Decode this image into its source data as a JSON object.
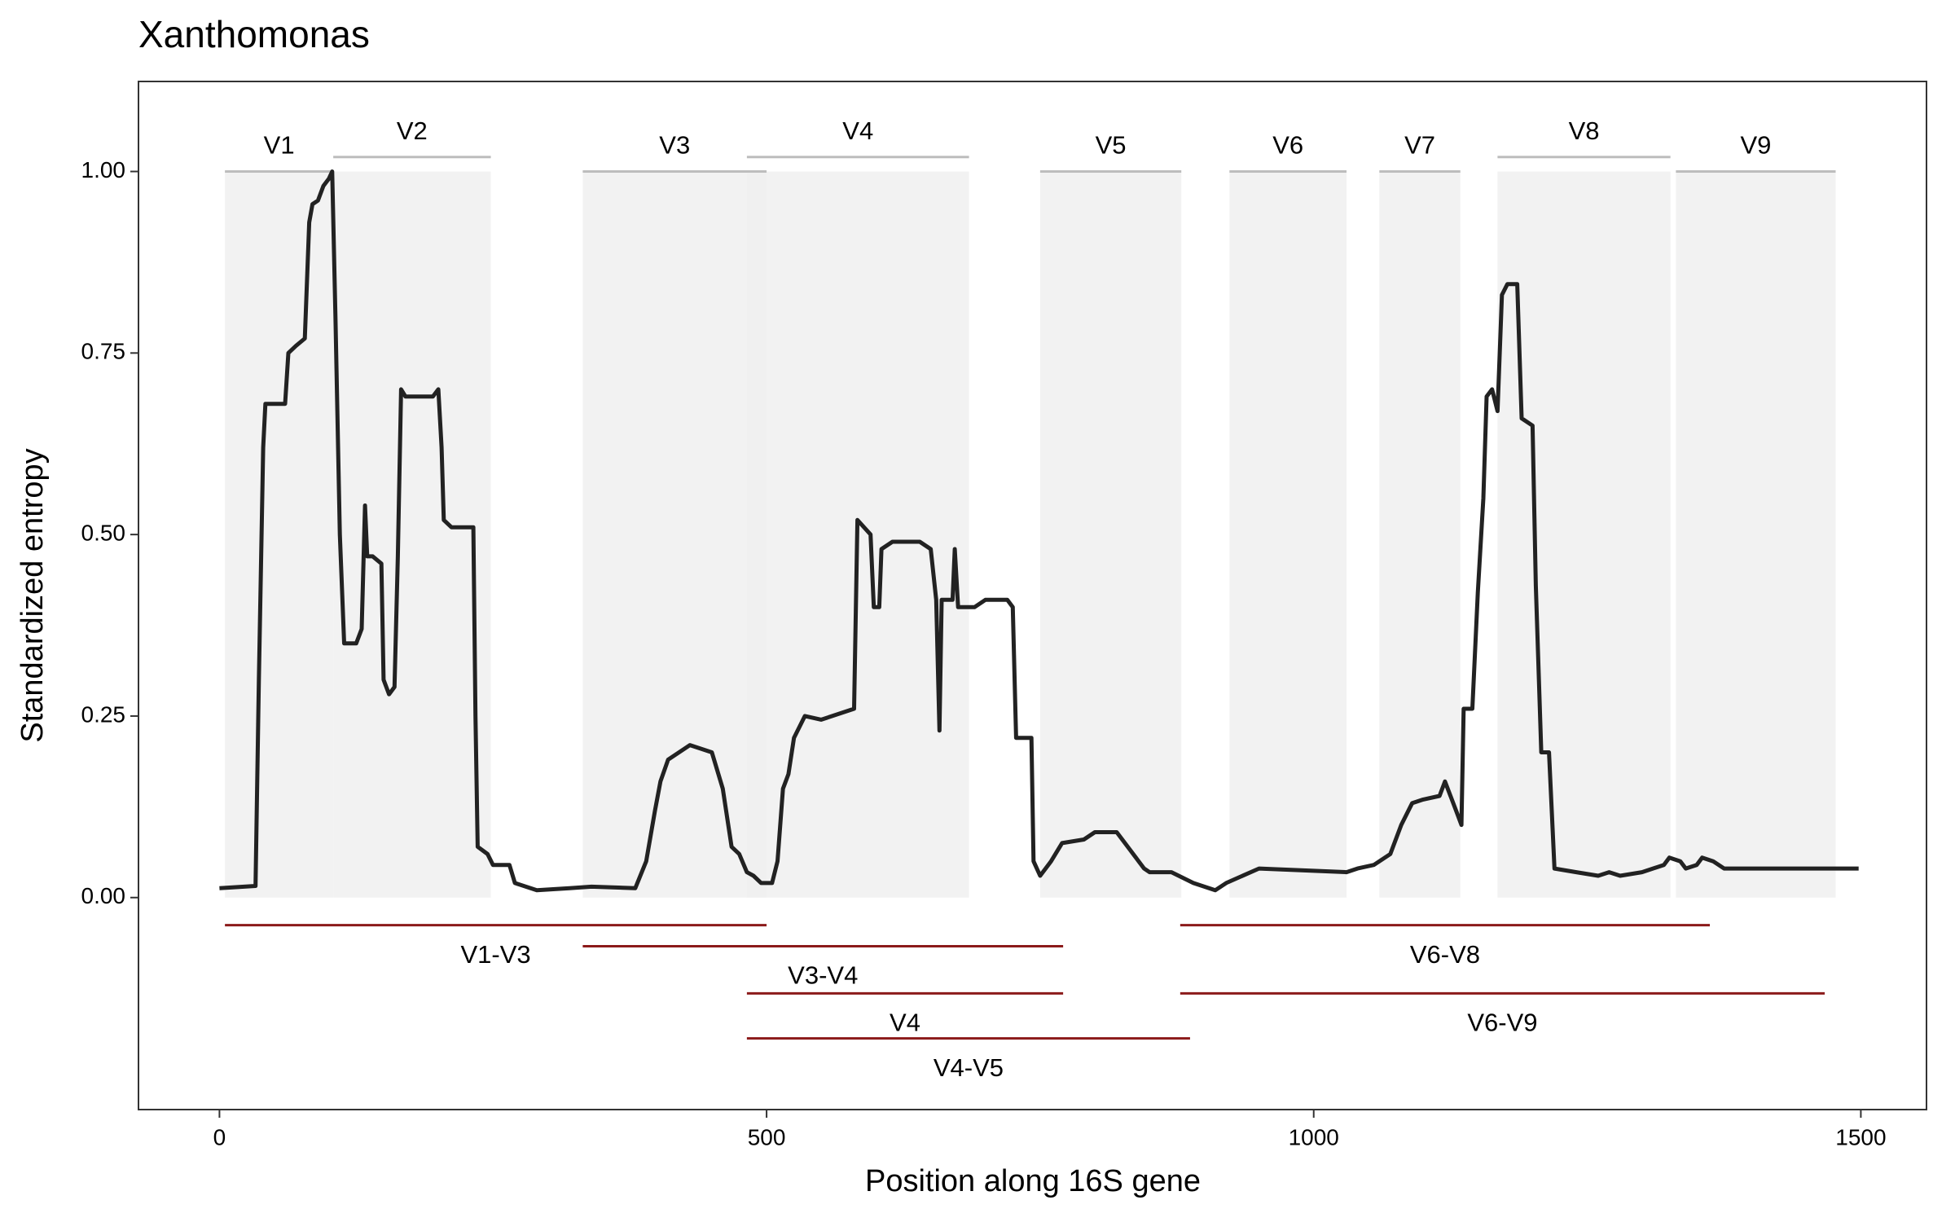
{
  "chart_data": {
    "type": "line",
    "title": "Xanthomonas",
    "x_label": "Position along 16S gene",
    "y_label": "Standardized entropy",
    "xlim": [
      -74,
      1560
    ],
    "ylim": [
      -0.292,
      1.124
    ],
    "xticks": [
      0,
      500,
      1000,
      1500
    ],
    "yticks": [
      {
        "value": 0,
        "label": "0.00"
      },
      {
        "value": 0.25,
        "label": "0.25"
      },
      {
        "value": 0.5,
        "label": "0.50"
      },
      {
        "value": 0.75,
        "label": "0.75"
      },
      {
        "value": 1,
        "label": "1.00"
      }
    ],
    "shade_range": [
      0,
      1
    ],
    "shade_color": "#f0f0f0",
    "region_bar_color": "#bdbdbd",
    "amplicon_color": "#8b1a1a",
    "regions": [
      {
        "label": "V1",
        "start": 5,
        "end": 104,
        "bar_y": 1.0
      },
      {
        "label": "V2",
        "start": 104,
        "end": 248,
        "bar_y": 1.02
      },
      {
        "label": "V3",
        "start": 332,
        "end": 500,
        "bar_y": 1.0
      },
      {
        "label": "V4",
        "start": 482,
        "end": 685,
        "bar_y": 1.02
      },
      {
        "label": "V5",
        "start": 750,
        "end": 879,
        "bar_y": 1.0
      },
      {
        "label": "V6",
        "start": 923,
        "end": 1030,
        "bar_y": 1.0
      },
      {
        "label": "V7",
        "start": 1060,
        "end": 1134,
        "bar_y": 1.0
      },
      {
        "label": "V8",
        "start": 1168,
        "end": 1326,
        "bar_y": 1.02
      },
      {
        "label": "V9",
        "start": 1331,
        "end": 1477,
        "bar_y": 1.0
      }
    ],
    "amplicons": [
      {
        "label": "V1-V3",
        "start": 5,
        "end": 500,
        "y": -0.038
      },
      {
        "label": "V3-V4",
        "start": 332,
        "end": 771,
        "y": -0.067
      },
      {
        "label": "V4",
        "start": 482,
        "end": 771,
        "y": -0.132
      },
      {
        "label": "V4-V5",
        "start": 482,
        "end": 887,
        "y": -0.194
      },
      {
        "label": "V6-V8",
        "start": 878,
        "end": 1362,
        "y": -0.038
      },
      {
        "label": "V6-V9",
        "start": 878,
        "end": 1467,
        "y": -0.132
      }
    ],
    "x": [
      0,
      33,
      36,
      40,
      42,
      60,
      63,
      70,
      78,
      82,
      85,
      90,
      95,
      100,
      103,
      106,
      110,
      114,
      125,
      130,
      133,
      135,
      140,
      148,
      150,
      155,
      160,
      163,
      166,
      170,
      175,
      195,
      200,
      203,
      205,
      212,
      232,
      234,
      236,
      245,
      250,
      265,
      270,
      290,
      320,
      340,
      380,
      390,
      398,
      403,
      410,
      430,
      450,
      460,
      468,
      475,
      482,
      488,
      495,
      505,
      510,
      515,
      520,
      525,
      535,
      550,
      560,
      580,
      583,
      595,
      598,
      603,
      605,
      615,
      640,
      650,
      655,
      658,
      660,
      670,
      672,
      675,
      690,
      700,
      720,
      725,
      728,
      742,
      744,
      750,
      760,
      770,
      790,
      800,
      820,
      830,
      845,
      850,
      870,
      890,
      910,
      920,
      950,
      1030,
      1040,
      1055,
      1070,
      1080,
      1090,
      1100,
      1115,
      1120,
      1130,
      1135,
      1137,
      1145,
      1150,
      1155,
      1158,
      1163,
      1168,
      1172,
      1177,
      1186,
      1190,
      1200,
      1203,
      1208,
      1215,
      1220,
      1240,
      1260,
      1270,
      1280,
      1300,
      1320,
      1325,
      1335,
      1340,
      1350,
      1355,
      1365,
      1375,
      1390,
      1498
    ],
    "series": [
      {
        "color": "#222222",
        "values": [
          0.013,
          0.016,
          0.3,
          0.62,
          0.68,
          0.68,
          0.75,
          0.76,
          0.77,
          0.93,
          0.955,
          0.96,
          0.98,
          0.99,
          1.0,
          0.8,
          0.5,
          0.35,
          0.35,
          0.37,
          0.54,
          0.47,
          0.47,
          0.46,
          0.3,
          0.28,
          0.29,
          0.47,
          0.7,
          0.69,
          0.69,
          0.69,
          0.7,
          0.62,
          0.52,
          0.51,
          0.51,
          0.25,
          0.07,
          0.06,
          0.045,
          0.045,
          0.02,
          0.01,
          0.013,
          0.015,
          0.013,
          0.05,
          0.12,
          0.16,
          0.19,
          0.21,
          0.2,
          0.15,
          0.07,
          0.06,
          0.035,
          0.03,
          0.02,
          0.02,
          0.05,
          0.15,
          0.17,
          0.22,
          0.25,
          0.245,
          0.25,
          0.26,
          0.52,
          0.5,
          0.4,
          0.4,
          0.48,
          0.49,
          0.49,
          0.48,
          0.41,
          0.23,
          0.41,
          0.41,
          0.48,
          0.4,
          0.4,
          0.41,
          0.41,
          0.4,
          0.22,
          0.22,
          0.05,
          0.03,
          0.05,
          0.075,
          0.08,
          0.09,
          0.09,
          0.07,
          0.04,
          0.035,
          0.035,
          0.02,
          0.01,
          0.02,
          0.04,
          0.035,
          0.04,
          0.045,
          0.06,
          0.1,
          0.13,
          0.135,
          0.14,
          0.16,
          0.12,
          0.1,
          0.26,
          0.26,
          0.42,
          0.55,
          0.69,
          0.7,
          0.67,
          0.83,
          0.845,
          0.845,
          0.66,
          0.65,
          0.43,
          0.2,
          0.2,
          0.04,
          0.035,
          0.03,
          0.035,
          0.03,
          0.035,
          0.045,
          0.055,
          0.05,
          0.04,
          0.045,
          0.055,
          0.05,
          0.04,
          0.04,
          0.04
        ]
      }
    ]
  }
}
